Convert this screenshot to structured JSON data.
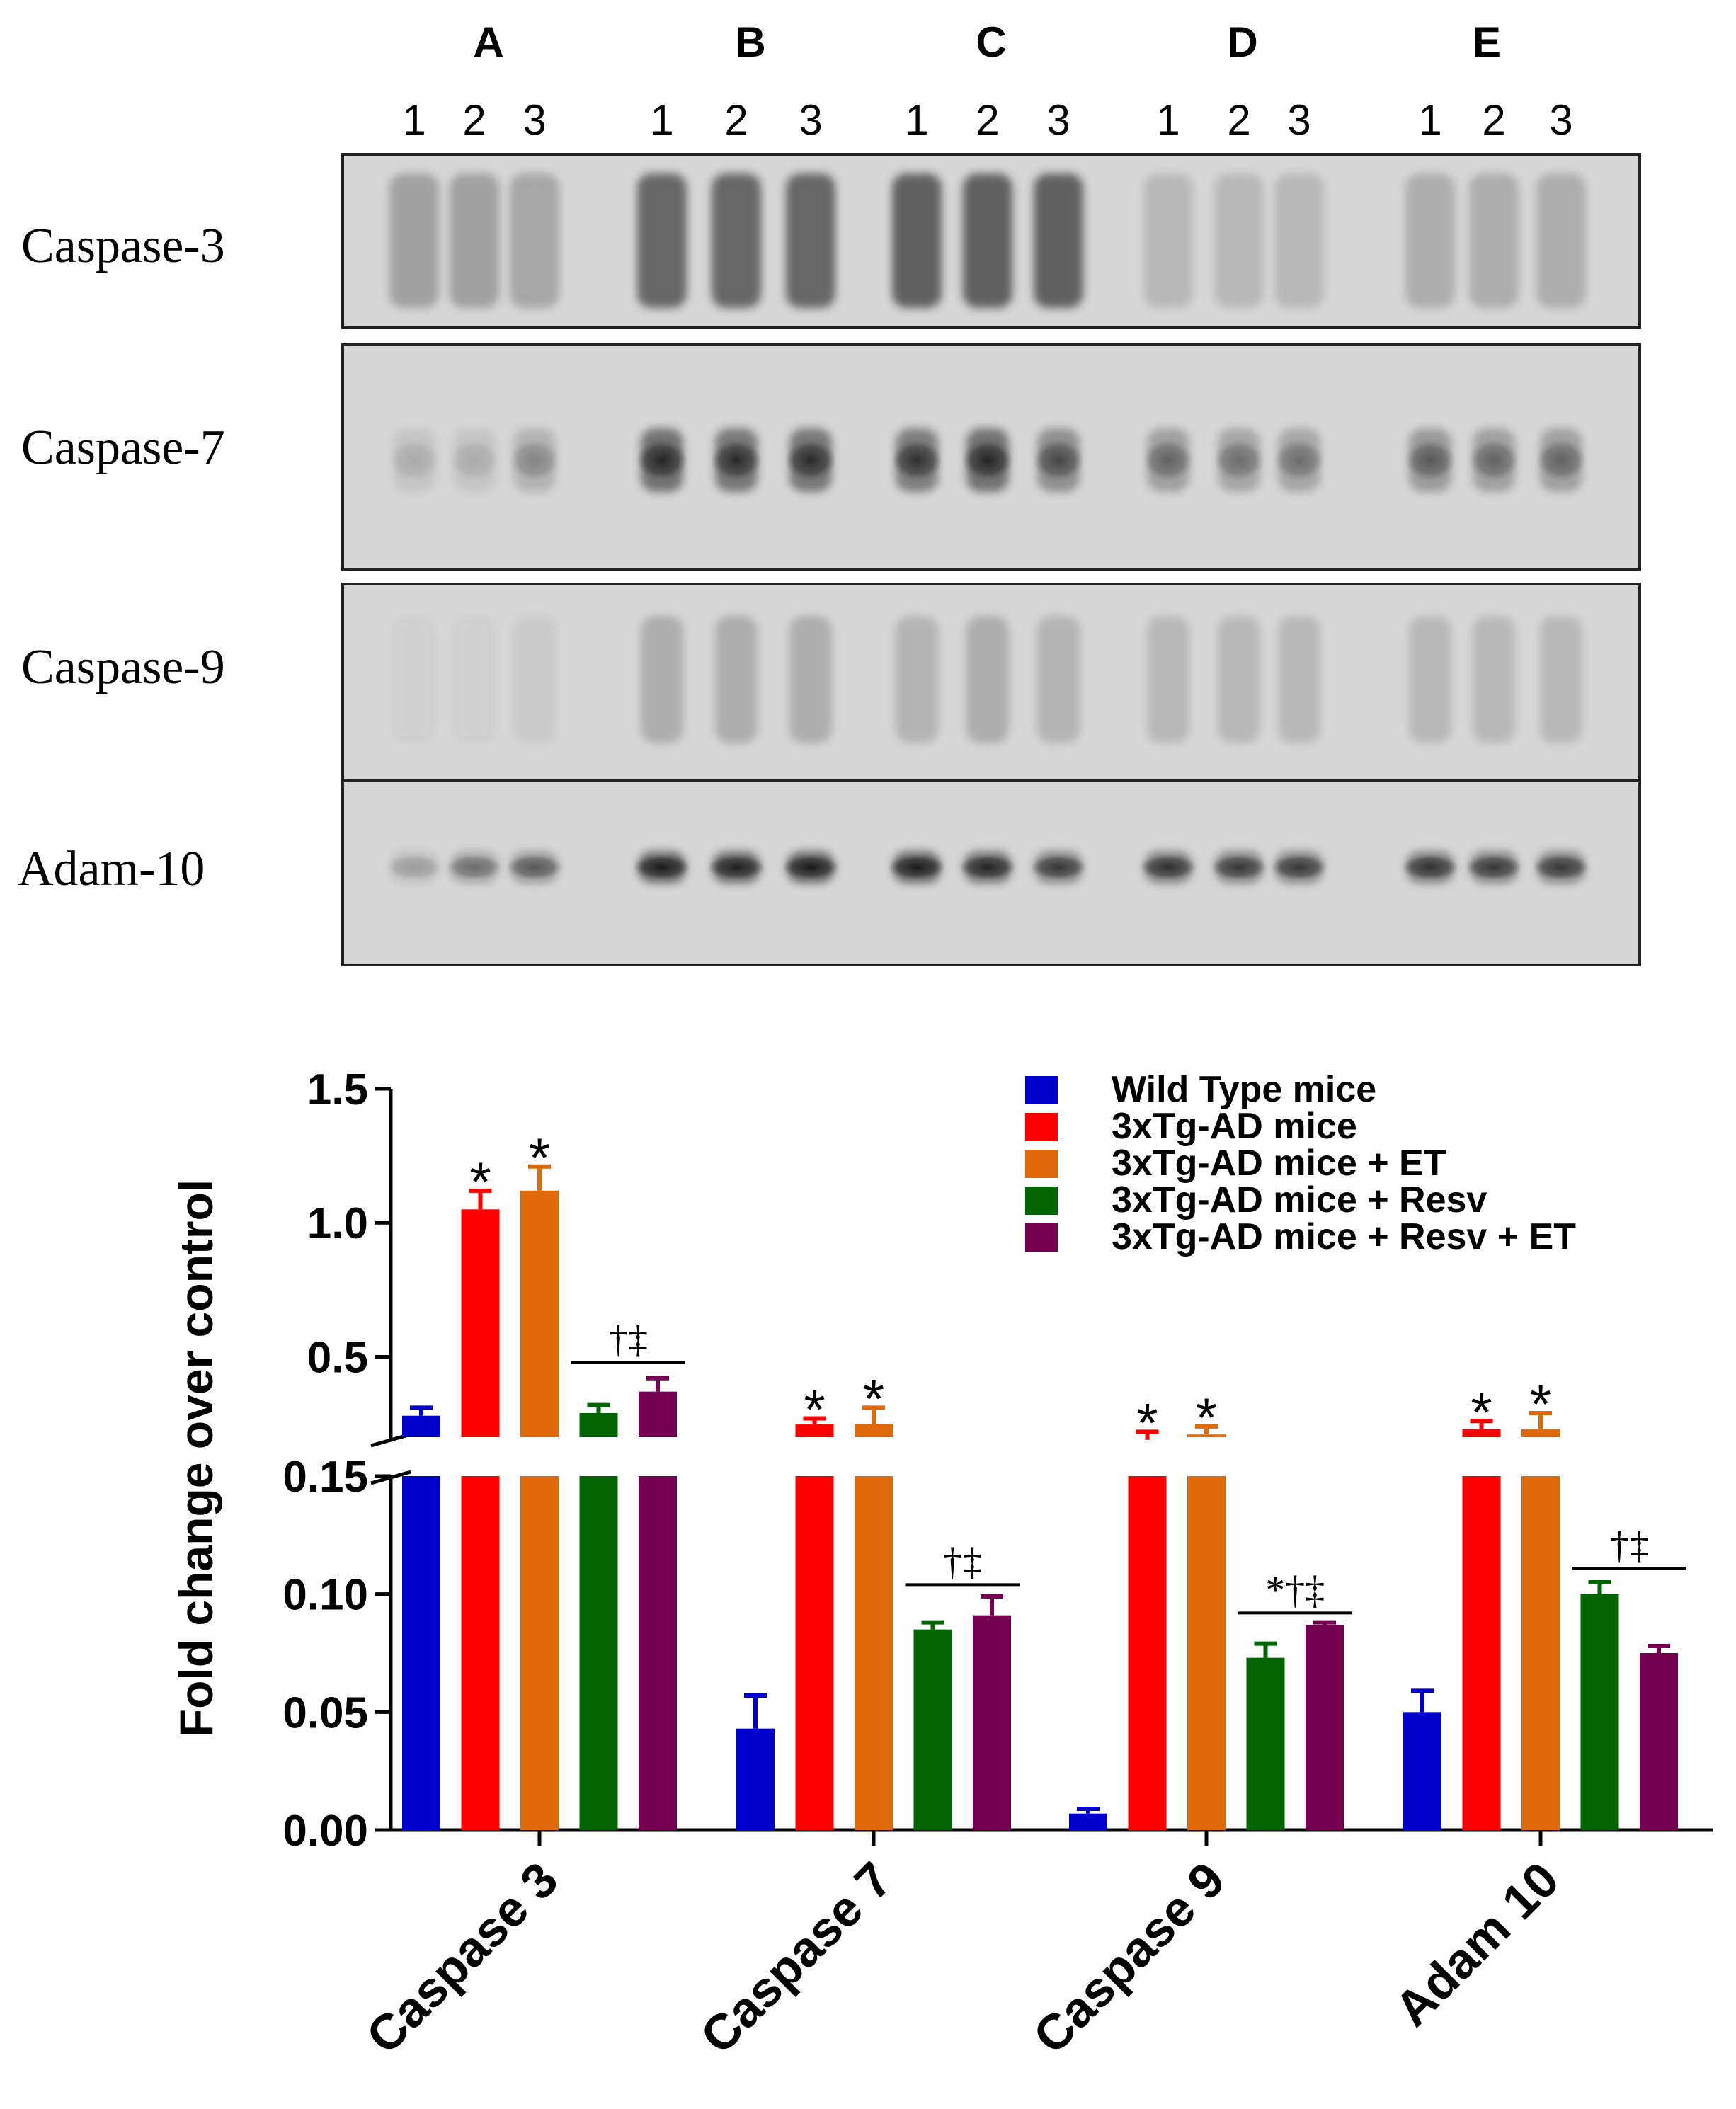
{
  "blot": {
    "group_labels": [
      "A",
      "B",
      "C",
      "D",
      "E"
    ],
    "lane_labels": [
      "1",
      "2",
      "3"
    ],
    "rows": [
      {
        "label": "Caspase-3",
        "lane_intensity": [
          0.45,
          0.45,
          0.4,
          0.95,
          0.95,
          0.95,
          1.0,
          1.0,
          1.0,
          0.25,
          0.25,
          0.25,
          0.35,
          0.35,
          0.35
        ]
      },
      {
        "label": "Caspase-7",
        "lane_intensity": [
          0.15,
          0.15,
          0.3,
          0.85,
          0.8,
          0.8,
          0.75,
          0.85,
          0.6,
          0.45,
          0.4,
          0.4,
          0.5,
          0.45,
          0.45
        ]
      },
      {
        "label": "Caspase-9",
        "lane_intensity": [
          0.05,
          0.05,
          0.1,
          0.35,
          0.35,
          0.35,
          0.3,
          0.35,
          0.3,
          0.25,
          0.25,
          0.25,
          0.25,
          0.25,
          0.25
        ]
      },
      {
        "label": "Adam-10",
        "lane_intensity": [
          0.2,
          0.4,
          0.5,
          0.95,
          0.9,
          0.95,
          0.95,
          0.85,
          0.7,
          0.75,
          0.7,
          0.7,
          0.75,
          0.7,
          0.7
        ]
      }
    ]
  },
  "chart_data": {
    "type": "bar",
    "categories": [
      "Caspase 3",
      "Caspase 7",
      "Caspase 9",
      "Adam 10"
    ],
    "ylabel": "Fold change over control",
    "y_axis_broken": true,
    "upper_ylim": [
      0.2,
      1.5
    ],
    "upper_ticks": [
      "0.5",
      "1.0",
      "1.5"
    ],
    "lower_ylim": [
      0,
      0.15
    ],
    "lower_ticks": [
      "0.00",
      "0.05",
      "0.10",
      "0.15"
    ],
    "legend_position": "top-right",
    "series": [
      {
        "name": "Wild Type mice",
        "color": "#0000cc",
        "values": [
          0.28,
          0.043,
          0.007,
          0.05
        ],
        "errors": [
          0.03,
          0.014,
          0.002,
          0.009
        ]
      },
      {
        "name": "3xTg-AD mice",
        "color": "#ff0000",
        "values": [
          1.05,
          0.25,
          0.19,
          0.23
        ],
        "errors": [
          0.07,
          0.02,
          0.03,
          0.03
        ]
      },
      {
        "name": "3xTg-AD mice + ET",
        "color": "#e06a0a",
        "values": [
          1.12,
          0.25,
          0.21,
          0.23
        ],
        "errors": [
          0.09,
          0.06,
          0.03,
          0.06
        ]
      },
      {
        "name": "3xTg-AD mice + Resv",
        "color": "#006400",
        "values": [
          0.29,
          0.085,
          0.073,
          0.1
        ],
        "errors": [
          0.03,
          0.003,
          0.006,
          0.005
        ]
      },
      {
        "name": "3xTg-AD mice + Resv + ET",
        "color": "#760050",
        "values": [
          0.37,
          0.091,
          0.087,
          0.075
        ],
        "errors": [
          0.05,
          0.008,
          0.001,
          0.003
        ]
      }
    ],
    "star_marks": [
      {
        "category": 0,
        "series": 1,
        "text": "*"
      },
      {
        "category": 0,
        "series": 2,
        "text": "*"
      },
      {
        "category": 1,
        "series": 1,
        "text": "*"
      },
      {
        "category": 1,
        "series": 2,
        "text": "*"
      },
      {
        "category": 2,
        "series": 1,
        "text": "*"
      },
      {
        "category": 2,
        "series": 2,
        "text": "*"
      },
      {
        "category": 3,
        "series": 1,
        "text": "*"
      },
      {
        "category": 3,
        "series": 2,
        "text": "*"
      }
    ],
    "bracket_marks": [
      {
        "category": 0,
        "value": 0.48,
        "panel": "upper",
        "text": "†‡"
      },
      {
        "category": 1,
        "value": 0.104,
        "panel": "lower",
        "text": "†‡"
      },
      {
        "category": 2,
        "value": 0.092,
        "panel": "lower",
        "text": "*†‡"
      },
      {
        "category": 3,
        "value": 0.111,
        "panel": "lower",
        "text": "†‡"
      }
    ]
  }
}
